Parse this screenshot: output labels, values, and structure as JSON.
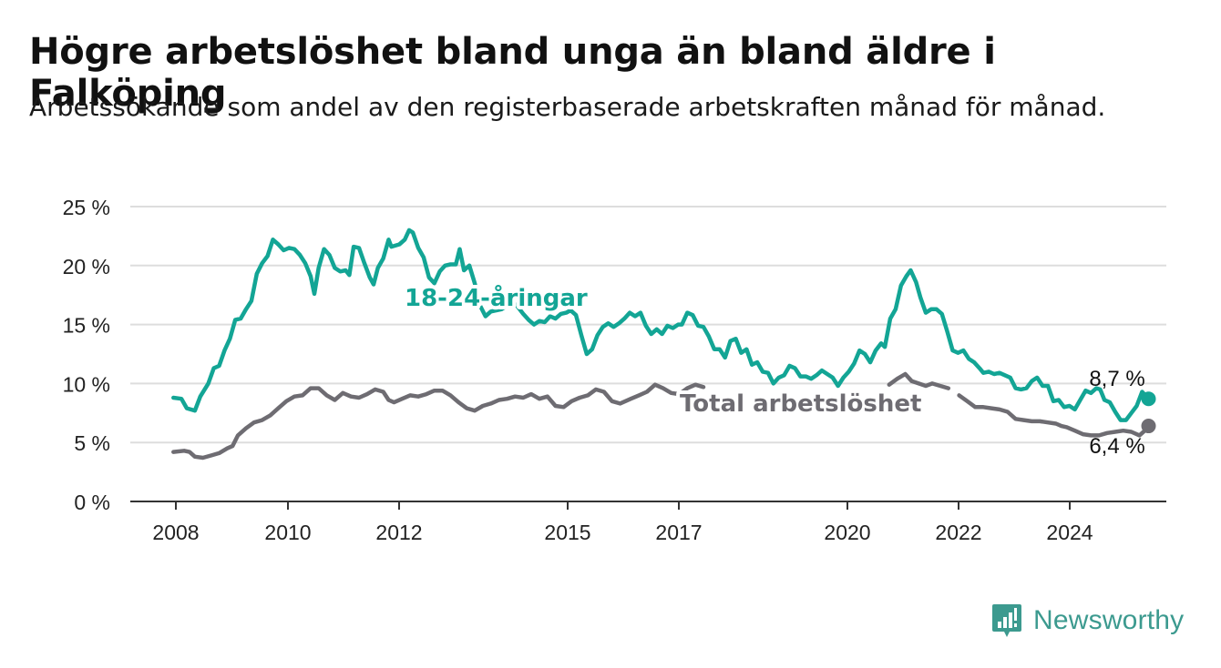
{
  "title": "Högre arbetslöshet bland unga än bland äldre i Falköping",
  "subtitle": "Arbetssökande som andel av den registerbaserade arbetskraften månad för månad.",
  "brand": "Newsworthy",
  "colors": {
    "youth": "#13a595",
    "total": "#6e6c72",
    "grid": "#dddddd",
    "axis": "#333333"
  },
  "chart_data": {
    "type": "line",
    "y_tick_labels": [
      "0 %",
      "5 %",
      "10 %",
      "15 %",
      "20 %",
      "25 %"
    ],
    "y_ticks": [
      0,
      5,
      10,
      15,
      20,
      25
    ],
    "ylim": [
      0,
      25
    ],
    "xlim": [
      2007.2,
      2025.65
    ],
    "x_ticks": [
      {
        "value": 2008,
        "label": "2008"
      },
      {
        "value": 2010,
        "label": "2010"
      },
      {
        "value": 2012,
        "label": "2012"
      },
      {
        "value": 2015.3,
        "label": "2015"
      },
      {
        "value": 2017.3,
        "label": "2017"
      },
      {
        "value": 2020.7,
        "label": "2020"
      },
      {
        "value": 2022.7,
        "label": "2022"
      },
      {
        "value": 2024.6,
        "label": "2024"
      }
    ],
    "grid": true,
    "series": [
      {
        "name": "18-24-åringar",
        "key": "youth",
        "end_label": "8,7 %",
        "points": [
          [
            2008.0,
            8.8
          ],
          [
            2008.15,
            8.7
          ],
          [
            2008.25,
            7.9
          ],
          [
            2008.4,
            7.7
          ],
          [
            2008.5,
            8.9
          ],
          [
            2008.65,
            10.0
          ],
          [
            2008.75,
            11.3
          ],
          [
            2008.85,
            11.5
          ],
          [
            2008.95,
            12.8
          ],
          [
            2009.05,
            13.8
          ],
          [
            2009.15,
            15.4
          ],
          [
            2009.25,
            15.5
          ],
          [
            2009.35,
            16.3
          ],
          [
            2009.45,
            17.0
          ],
          [
            2009.55,
            19.3
          ],
          [
            2009.65,
            20.2
          ],
          [
            2009.75,
            20.8
          ],
          [
            2009.85,
            22.2
          ],
          [
            2009.95,
            21.8
          ],
          [
            2010.05,
            21.3
          ],
          [
            2010.15,
            21.5
          ],
          [
            2010.25,
            21.4
          ],
          [
            2010.35,
            20.9
          ],
          [
            2010.45,
            20.2
          ],
          [
            2010.55,
            19.1
          ],
          [
            2010.62,
            17.6
          ],
          [
            2010.7,
            19.8
          ],
          [
            2010.8,
            21.4
          ],
          [
            2010.9,
            20.9
          ],
          [
            2011.0,
            19.8
          ],
          [
            2011.1,
            19.5
          ],
          [
            2011.2,
            19.6
          ],
          [
            2011.27,
            19.2
          ],
          [
            2011.35,
            21.6
          ],
          [
            2011.45,
            21.5
          ],
          [
            2011.55,
            20.2
          ],
          [
            2011.65,
            19.0
          ],
          [
            2011.72,
            18.4
          ],
          [
            2011.8,
            19.8
          ],
          [
            2011.9,
            20.6
          ],
          [
            2012.0,
            22.2
          ],
          [
            2012.05,
            21.6
          ],
          [
            2012.2,
            21.8
          ],
          [
            2012.3,
            22.2
          ],
          [
            2012.38,
            23.0
          ],
          [
            2012.45,
            22.8
          ],
          [
            2012.55,
            21.5
          ],
          [
            2012.65,
            20.7
          ],
          [
            2012.75,
            19.0
          ],
          [
            2012.85,
            18.5
          ],
          [
            2012.95,
            19.5
          ],
          [
            2013.05,
            20.0
          ],
          [
            2013.15,
            20.1
          ],
          [
            2013.25,
            20.1
          ],
          [
            2013.32,
            21.4
          ],
          [
            2013.4,
            19.6
          ],
          [
            2013.5,
            20.0
          ],
          [
            2013.6,
            18.5
          ],
          [
            2013.7,
            16.6
          ],
          [
            2013.8,
            15.7
          ],
          [
            2013.9,
            16.1
          ],
          [
            2014.0,
            16.2
          ],
          [
            2014.1,
            16.3
          ],
          [
            2014.2,
            16.6
          ],
          [
            2014.3,
            16.9
          ],
          [
            2014.4,
            16.5
          ],
          [
            2014.5,
            15.9
          ],
          [
            2014.6,
            15.4
          ],
          [
            2014.7,
            15.0
          ],
          [
            2014.8,
            15.3
          ],
          [
            2014.9,
            15.2
          ],
          [
            2015.0,
            15.7
          ],
          [
            2015.1,
            15.5
          ],
          [
            2015.2,
            15.9
          ],
          [
            2015.3,
            16.0
          ],
          [
            2015.38,
            16.2
          ],
          [
            2015.48,
            15.8
          ],
          [
            2015.58,
            14.1
          ],
          [
            2015.68,
            12.5
          ],
          [
            2015.78,
            12.9
          ],
          [
            2015.88,
            14.1
          ],
          [
            2015.98,
            14.8
          ],
          [
            2016.08,
            15.1
          ],
          [
            2016.18,
            14.8
          ],
          [
            2016.28,
            15.1
          ],
          [
            2016.38,
            15.5
          ],
          [
            2016.48,
            16.0
          ],
          [
            2016.58,
            15.7
          ],
          [
            2016.68,
            16.0
          ],
          [
            2016.78,
            14.9
          ],
          [
            2016.88,
            14.2
          ],
          [
            2016.98,
            14.6
          ],
          [
            2017.08,
            14.2
          ],
          [
            2017.18,
            14.9
          ],
          [
            2017.28,
            14.7
          ],
          [
            2017.38,
            15.0
          ],
          [
            2017.45,
            15.0
          ],
          [
            2017.55,
            16.0
          ],
          [
            2017.65,
            15.8
          ],
          [
            2017.75,
            14.9
          ],
          [
            2017.85,
            14.8
          ],
          [
            2017.95,
            14.0
          ],
          [
            2018.05,
            12.9
          ],
          [
            2018.15,
            12.9
          ],
          [
            2018.25,
            12.2
          ],
          [
            2018.35,
            13.6
          ],
          [
            2018.45,
            13.8
          ],
          [
            2018.55,
            12.6
          ],
          [
            2018.65,
            12.9
          ],
          [
            2018.75,
            11.6
          ],
          [
            2018.85,
            11.8
          ],
          [
            2018.95,
            11.0
          ],
          [
            2019.05,
            10.9
          ],
          [
            2019.15,
            10.0
          ],
          [
            2019.25,
            10.5
          ],
          [
            2019.35,
            10.7
          ],
          [
            2019.45,
            11.5
          ],
          [
            2019.55,
            11.3
          ],
          [
            2019.65,
            10.6
          ],
          [
            2019.75,
            10.6
          ],
          [
            2019.85,
            10.4
          ],
          [
            2019.95,
            10.7
          ],
          [
            2020.05,
            11.1
          ],
          [
            2020.15,
            10.8
          ],
          [
            2020.25,
            10.5
          ],
          [
            2020.35,
            9.8
          ],
          [
            2020.45,
            10.5
          ],
          [
            2020.55,
            11.0
          ],
          [
            2020.65,
            11.7
          ],
          [
            2020.75,
            12.8
          ],
          [
            2020.85,
            12.5
          ],
          [
            2020.95,
            11.8
          ],
          [
            2021.05,
            12.8
          ],
          [
            2021.15,
            13.4
          ],
          [
            2021.22,
            13.1
          ],
          [
            2021.32,
            15.5
          ],
          [
            2021.42,
            16.3
          ],
          [
            2021.52,
            18.3
          ],
          [
            2021.62,
            19.1
          ],
          [
            2021.7,
            19.6
          ],
          [
            2021.8,
            18.6
          ],
          [
            2021.88,
            17.3
          ],
          [
            2021.98,
            16.0
          ],
          [
            2022.08,
            16.3
          ],
          [
            2022.18,
            16.3
          ],
          [
            2022.28,
            15.9
          ],
          [
            2022.38,
            14.4
          ],
          [
            2022.48,
            12.8
          ],
          [
            2022.58,
            12.6
          ],
          [
            2022.68,
            12.8
          ],
          [
            2022.78,
            12.1
          ],
          [
            2022.88,
            11.8
          ],
          [
            2022.98,
            11.3
          ],
          [
            2023.05,
            10.9
          ],
          [
            2023.15,
            11.0
          ],
          [
            2023.25,
            10.8
          ],
          [
            2023.35,
            10.9
          ],
          [
            2023.45,
            10.7
          ],
          [
            2023.55,
            10.5
          ],
          [
            2023.65,
            9.6
          ],
          [
            2023.75,
            9.5
          ],
          [
            2023.85,
            9.6
          ],
          [
            2023.95,
            10.2
          ],
          [
            2024.05,
            10.5
          ],
          [
            2024.15,
            9.8
          ],
          [
            2024.25,
            9.8
          ],
          [
            2024.35,
            8.5
          ],
          [
            2024.45,
            8.6
          ],
          [
            2024.55,
            8.0
          ],
          [
            2024.65,
            8.1
          ],
          [
            2024.75,
            7.8
          ],
          [
            2024.85,
            8.6
          ],
          [
            2024.95,
            9.4
          ],
          [
            2025.05,
            9.2
          ],
          [
            2025.15,
            9.6
          ],
          [
            2025.22,
            9.5
          ],
          [
            2025.3,
            8.6
          ],
          [
            2025.4,
            8.4
          ],
          [
            2025.5,
            7.6
          ],
          [
            2025.6,
            6.9
          ],
          [
            2025.7,
            6.9
          ],
          [
            2025.8,
            7.5
          ],
          [
            2025.9,
            8.1
          ],
          [
            2026.0,
            9.3
          ],
          [
            2026.12,
            8.7
          ]
        ]
      },
      {
        "name": "Total arbetslöshet",
        "key": "total",
        "end_label": "6,4 %",
        "points": [
          [
            2008.0,
            4.2
          ],
          [
            2008.2,
            4.3
          ],
          [
            2008.3,
            4.2
          ],
          [
            2008.4,
            3.8
          ],
          [
            2008.55,
            3.7
          ],
          [
            2008.7,
            3.9
          ],
          [
            2008.85,
            4.1
          ],
          [
            2009.0,
            4.5
          ],
          [
            2009.1,
            4.7
          ],
          [
            2009.2,
            5.6
          ],
          [
            2009.35,
            6.2
          ],
          [
            2009.5,
            6.7
          ],
          [
            2009.65,
            6.9
          ],
          [
            2009.8,
            7.3
          ],
          [
            2009.95,
            7.9
          ],
          [
            2010.1,
            8.5
          ],
          [
            2010.25,
            8.9
          ],
          [
            2010.4,
            9.0
          ],
          [
            2010.55,
            9.6
          ],
          [
            2010.7,
            9.6
          ],
          [
            2010.85,
            9.0
          ],
          [
            2011.0,
            8.6
          ],
          [
            2011.15,
            9.2
          ],
          [
            2011.3,
            8.9
          ],
          [
            2011.45,
            8.8
          ],
          [
            2011.6,
            9.1
          ],
          [
            2011.75,
            9.5
          ],
          [
            2011.9,
            9.3
          ],
          [
            2012.0,
            8.6
          ],
          [
            2012.1,
            8.4
          ],
          [
            2012.25,
            8.7
          ],
          [
            2012.4,
            9.0
          ],
          [
            2012.55,
            8.9
          ],
          [
            2012.7,
            9.1
          ],
          [
            2012.85,
            9.4
          ],
          [
            2013.0,
            9.4
          ],
          [
            2013.15,
            9.0
          ],
          [
            2013.3,
            8.4
          ],
          [
            2013.45,
            7.9
          ],
          [
            2013.6,
            7.7
          ],
          [
            2013.75,
            8.1
          ],
          [
            2013.9,
            8.3
          ],
          [
            2014.05,
            8.6
          ],
          [
            2014.2,
            8.7
          ],
          [
            2014.35,
            8.9
          ],
          [
            2014.5,
            8.8
          ],
          [
            2014.65,
            9.1
          ],
          [
            2014.8,
            8.7
          ],
          [
            2014.95,
            8.9
          ],
          [
            2015.1,
            8.1
          ],
          [
            2015.25,
            8.0
          ],
          [
            2015.4,
            8.5
          ],
          [
            2015.55,
            8.8
          ],
          [
            2015.7,
            9.0
          ],
          [
            2015.85,
            9.5
          ],
          [
            2016.0,
            9.3
          ],
          [
            2016.15,
            8.5
          ],
          [
            2016.3,
            8.3
          ],
          [
            2016.5,
            8.7
          ],
          [
            2016.65,
            9.0
          ],
          [
            2016.8,
            9.3
          ],
          [
            2016.95,
            9.9
          ],
          [
            2017.1,
            9.6
          ],
          [
            2017.25,
            9.2
          ],
          [
            2017.4,
            9.1
          ],
          [
            2017.55,
            9.6
          ],
          [
            2017.7,
            9.9
          ],
          [
            2017.85,
            9.7
          ]
        ],
        "points_after_label": [
          [
            2021.3,
            9.9
          ],
          [
            2021.45,
            10.4
          ],
          [
            2021.6,
            10.8
          ],
          [
            2021.72,
            10.2
          ],
          [
            2021.85,
            10.0
          ],
          [
            2021.98,
            9.8
          ],
          [
            2022.1,
            10.0
          ],
          [
            2022.25,
            9.8
          ],
          [
            2022.4,
            9.6
          ]
        ],
        "points_tail": [
          [
            2022.6,
            9.0
          ],
          [
            2022.75,
            8.5
          ],
          [
            2022.9,
            8.0
          ],
          [
            2023.05,
            8.0
          ],
          [
            2023.2,
            7.9
          ],
          [
            2023.35,
            7.8
          ],
          [
            2023.5,
            7.6
          ],
          [
            2023.65,
            7.0
          ],
          [
            2023.8,
            6.9
          ],
          [
            2023.95,
            6.8
          ],
          [
            2024.1,
            6.8
          ],
          [
            2024.25,
            6.7
          ],
          [
            2024.4,
            6.6
          ],
          [
            2024.5,
            6.4
          ],
          [
            2024.6,
            6.3
          ],
          [
            2024.75,
            6.0
          ],
          [
            2024.9,
            5.7
          ],
          [
            2025.05,
            5.6
          ],
          [
            2025.2,
            5.6
          ],
          [
            2025.35,
            5.8
          ],
          [
            2025.5,
            5.9
          ],
          [
            2025.65,
            6.0
          ],
          [
            2025.8,
            5.9
          ],
          [
            2025.95,
            5.6
          ],
          [
            2026.05,
            6.0
          ],
          [
            2026.12,
            6.4
          ]
        ]
      }
    ]
  }
}
